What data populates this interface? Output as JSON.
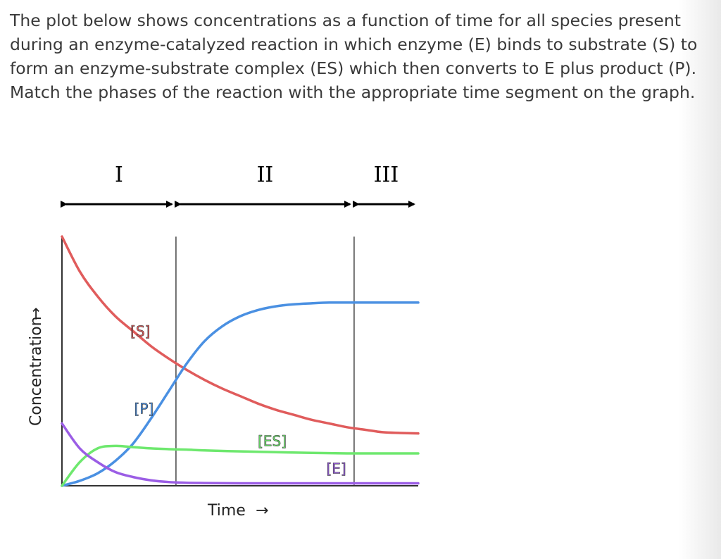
{
  "question": "The plot below shows concentrations as a function of time for all species present during an enzyme-catalyzed reaction in which enzyme (E) binds to substrate (S) to form an enzyme-substrate complex (ES) which then converts to E plus product (P).  Match the phases of the reaction with the appropriate time segment on the graph.",
  "chart_data": {
    "type": "line",
    "xlabel": "Time",
    "ylabel": "Concentration",
    "xlim": [
      0,
      10
    ],
    "ylim": [
      0,
      10
    ],
    "axis_arrows": {
      "x": "→",
      "y": "→"
    },
    "grid": false,
    "phases": [
      {
        "label": "I",
        "x_start": 0,
        "x_end": 3.2
      },
      {
        "label": "II",
        "x_start": 3.2,
        "x_end": 8.2
      },
      {
        "label": "III",
        "x_start": 8.2,
        "x_end": 10
      }
    ],
    "phase_boundaries": [
      3.2,
      8.2
    ],
    "series": [
      {
        "name": "[S]",
        "color": "#e05c5c",
        "x": [
          0,
          0.5,
          1,
          1.5,
          2,
          2.5,
          3,
          3.5,
          4,
          4.5,
          5,
          5.5,
          6,
          6.5,
          7,
          7.5,
          8,
          8.5,
          9,
          9.5,
          10
        ],
        "y": [
          10,
          8.6,
          7.6,
          6.8,
          6.2,
          5.6,
          5.1,
          4.65,
          4.25,
          3.9,
          3.6,
          3.3,
          3.05,
          2.85,
          2.65,
          2.5,
          2.35,
          2.25,
          2.15,
          2.12,
          2.1
        ]
      },
      {
        "name": "[P]",
        "color": "#4a90e2",
        "x": [
          0,
          0.5,
          1,
          1.5,
          2,
          2.5,
          3,
          3.5,
          4,
          4.5,
          5,
          5.5,
          6,
          6.5,
          7,
          7.5,
          8,
          8.5,
          9,
          9.5,
          10
        ],
        "y": [
          0,
          0.2,
          0.5,
          1.0,
          1.7,
          2.7,
          3.8,
          4.9,
          5.8,
          6.4,
          6.8,
          7.05,
          7.2,
          7.28,
          7.32,
          7.35,
          7.35,
          7.35,
          7.35,
          7.35,
          7.35
        ]
      },
      {
        "name": "[ES]",
        "color": "#6ee86e",
        "x": [
          0,
          0.5,
          1,
          1.5,
          2,
          2.5,
          3,
          3.5,
          4,
          5,
          6,
          7,
          8,
          9,
          10
        ],
        "y": [
          0,
          0.95,
          1.5,
          1.6,
          1.55,
          1.5,
          1.47,
          1.45,
          1.42,
          1.38,
          1.35,
          1.32,
          1.3,
          1.3,
          1.3
        ]
      },
      {
        "name": "[E]",
        "color": "#9b5de5",
        "x": [
          0,
          0.5,
          1,
          1.5,
          2,
          2.5,
          3,
          3.5,
          4,
          5,
          6,
          7,
          8,
          9,
          10
        ],
        "y": [
          2.5,
          1.5,
          0.95,
          0.55,
          0.35,
          0.22,
          0.15,
          0.12,
          0.11,
          0.1,
          0.1,
          0.1,
          0.1,
          0.1,
          0.1
        ]
      }
    ],
    "series_labels": [
      {
        "text": "[S]",
        "x": 2.2,
        "y": 6.0
      },
      {
        "text": "[P]",
        "x": 2.3,
        "y": 2.9
      },
      {
        "text": "[ES]",
        "x": 5.9,
        "y": 1.6
      },
      {
        "text": "[E]",
        "x": 7.7,
        "y": 0.5
      }
    ]
  }
}
